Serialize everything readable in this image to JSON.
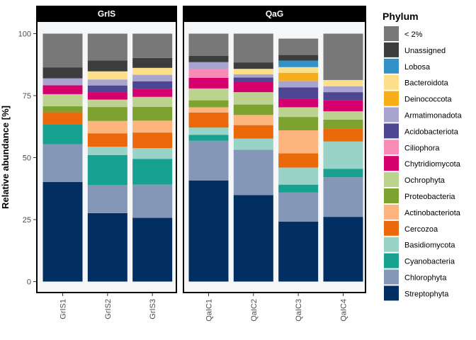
{
  "chart_data": {
    "type": "bar",
    "stacked": true,
    "xlabel": "",
    "ylabel": "Relative abundance [%]",
    "ylim": [
      0,
      100
    ],
    "yticks": [
      0,
      25,
      50,
      75,
      100
    ],
    "grid": false,
    "legend": {
      "title": "Phylum",
      "placement": "right"
    },
    "facets": [
      {
        "label": "GrIS",
        "categories": [
          "GrIS1",
          "GrIS2",
          "GrIS3"
        ]
      },
      {
        "label": "QaG",
        "categories": [
          "QaIC1",
          "QaIC2",
          "QaIC3",
          "QaIC4"
        ]
      }
    ],
    "categories": [
      "GrIS1",
      "GrIS2",
      "GrIS3",
      "QaIC1",
      "QaIC2",
      "QaIC3",
      "QaIC4"
    ],
    "series": [
      {
        "name": "Streptophyta",
        "color": "#022F62",
        "values": [
          40.2,
          27.6,
          25.7,
          40.8,
          34.9,
          24.2,
          26.1
        ]
      },
      {
        "name": "Chlorophyta",
        "color": "#8497B8",
        "values": [
          15.2,
          11.4,
          13.4,
          16.0,
          18.3,
          11.8,
          16.0
        ]
      },
      {
        "name": "Cyanobacteria",
        "color": "#16A191",
        "values": [
          8.0,
          12.0,
          10.4,
          2.4,
          0.0,
          3.1,
          3.4
        ]
      },
      {
        "name": "Basidiomycota",
        "color": "#99D2C6",
        "values": [
          0.0,
          3.4,
          4.3,
          2.9,
          4.5,
          6.9,
          11.0
        ]
      },
      {
        "name": "Cercozoa",
        "color": "#EB690A",
        "values": [
          4.9,
          5.4,
          6.3,
          6.1,
          5.4,
          5.7,
          5.1
        ]
      },
      {
        "name": "Actinobacteriota",
        "color": "#FDB47D",
        "values": [
          0.0,
          5.0,
          4.8,
          2.1,
          4.1,
          9.3,
          0.0
        ]
      },
      {
        "name": "Proteobacteria",
        "color": "#7DA22F",
        "values": [
          2.4,
          5.6,
          5.6,
          2.8,
          4.2,
          5.4,
          3.7
        ]
      },
      {
        "name": "Ochrophyta",
        "color": "#BBD38E",
        "values": [
          4.9,
          3.0,
          4.0,
          4.8,
          5.0,
          3.9,
          3.4
        ]
      },
      {
        "name": "Chytridiomycota",
        "color": "#D5006E",
        "values": [
          3.6,
          3.0,
          3.1,
          4.3,
          4.3,
          3.4,
          4.4
        ]
      },
      {
        "name": "Ciliophora",
        "color": "#F78BB6",
        "values": [
          0.0,
          0.0,
          0.0,
          3.5,
          0.0,
          0.0,
          0.0
        ]
      },
      {
        "name": "Acidobacteriota",
        "color": "#4D4692",
        "values": [
          0.0,
          2.7,
          3.2,
          0.0,
          1.6,
          4.6,
          3.3
        ]
      },
      {
        "name": "Armatimonadota",
        "color": "#A8A4D0",
        "values": [
          2.8,
          2.4,
          2.6,
          2.8,
          1.3,
          2.6,
          2.4
        ]
      },
      {
        "name": "Deinococcota",
        "color": "#F7AE18",
        "values": [
          0.0,
          0.0,
          0.0,
          0.0,
          0.0,
          3.3,
          0.0
        ]
      },
      {
        "name": "Bacteroidota",
        "color": "#FDDE89",
        "values": [
          0.0,
          3.3,
          2.8,
          0.0,
          2.2,
          2.3,
          2.5
        ]
      },
      {
        "name": "Lobosa",
        "color": "#3391C8",
        "values": [
          0.0,
          0.0,
          0.0,
          0.0,
          0.0,
          2.6,
          0.0
        ]
      },
      {
        "name": "Unassigned",
        "color": "#3D3D3D",
        "values": [
          4.4,
          4.4,
          4.0,
          2.5,
          2.6,
          2.3,
          0.0
        ]
      },
      {
        "name": "< 2%",
        "color": "#787878",
        "values": [
          13.6,
          10.8,
          9.8,
          9.0,
          11.6,
          6.6,
          18.7
        ]
      }
    ]
  }
}
